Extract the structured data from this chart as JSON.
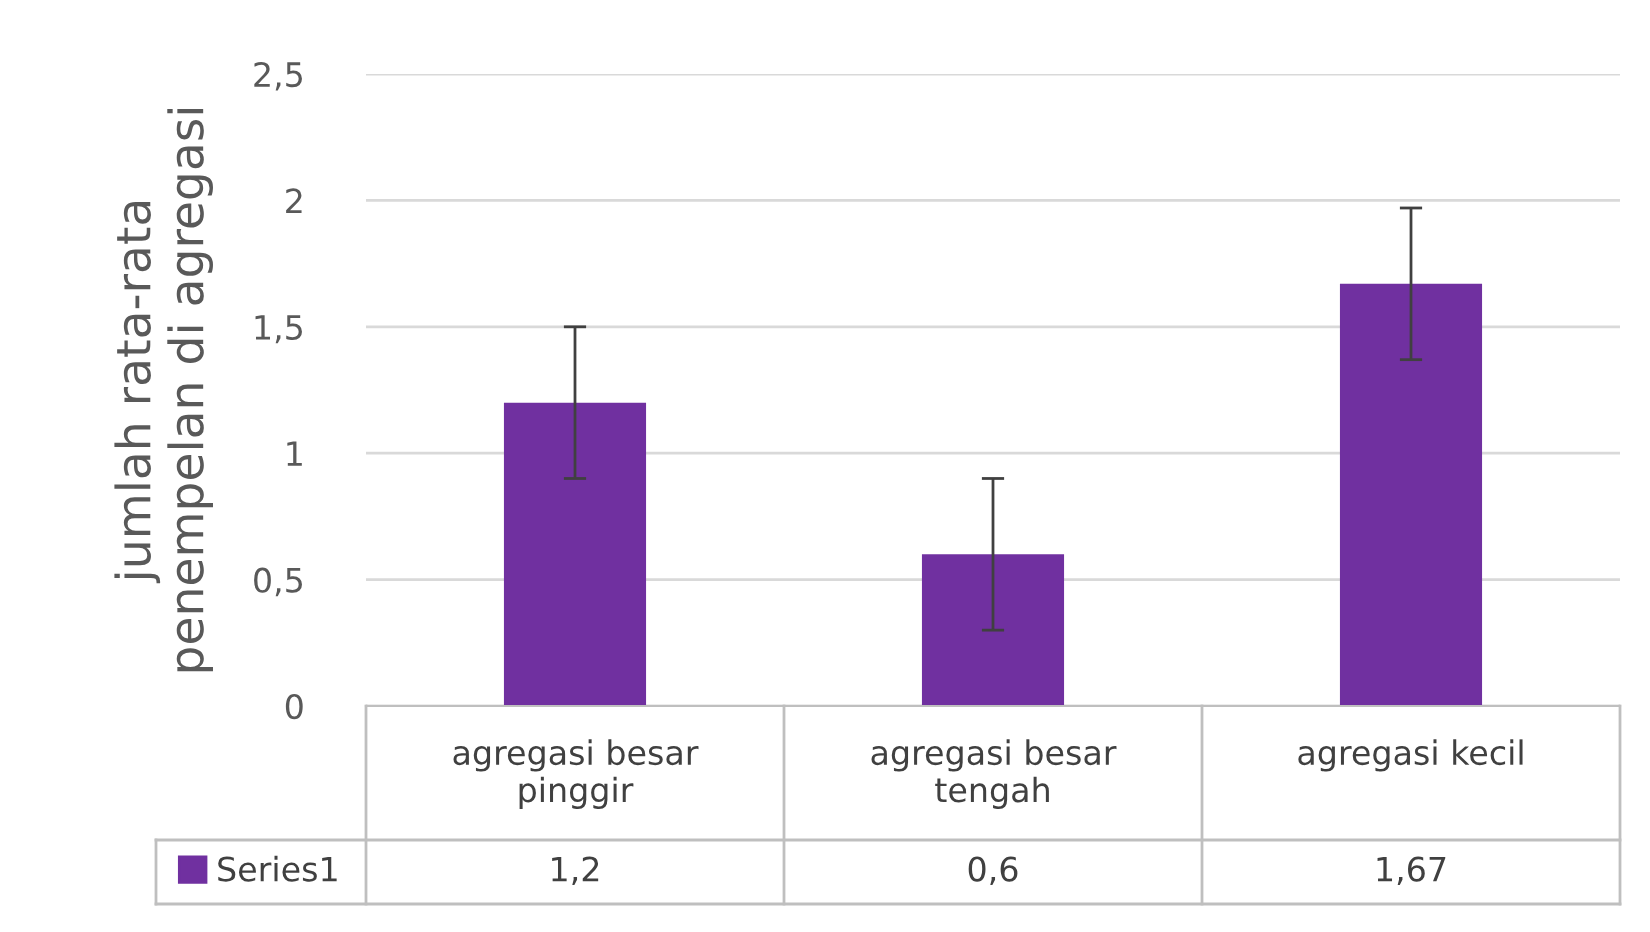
{
  "chart_data": {
    "type": "bar",
    "ylabel": "jumlah rata-rata\npenempelan di agregasi",
    "categories": [
      "agregasi besar\npinggir",
      "agregasi besar\ntengah",
      "agregasi kecil"
    ],
    "series": [
      {
        "name": "Series1",
        "color": "#7030a0",
        "values": [
          1.2,
          0.6,
          1.67
        ],
        "errors": [
          0.3,
          0.3,
          0.3
        ],
        "value_labels": [
          "1,2",
          "0,6",
          "1,67"
        ]
      }
    ],
    "ylim": [
      0,
      2.5
    ],
    "yticks": [
      0,
      {
        "value": 0.5,
        "label": "0,5"
      },
      1,
      {
        "value": 1.5,
        "label": "1,5"
      },
      2,
      {
        "value": 2.5,
        "label": "2,5"
      }
    ],
    "grid": "y",
    "legend": "bottom"
  }
}
